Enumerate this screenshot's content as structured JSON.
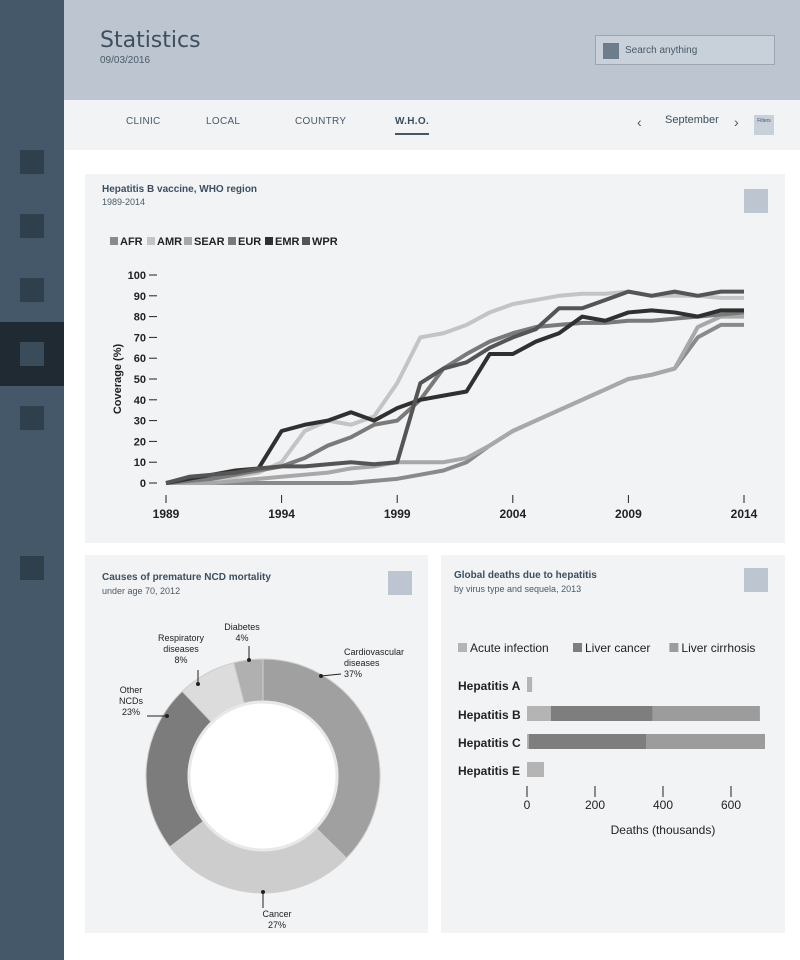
{
  "header": {
    "title": "Statistics",
    "date": "09/03/2016",
    "search_placeholder": "Search anything"
  },
  "tabs": [
    {
      "label": "CLINIC",
      "active": false
    },
    {
      "label": "LOCAL",
      "active": false
    },
    {
      "label": "COUNTRY",
      "active": false
    },
    {
      "label": "W.H.O.",
      "active": true
    }
  ],
  "month_nav": {
    "month": "September",
    "filters_label": "Filters"
  },
  "icons": {
    "search": "search-icon",
    "prev": "chevron-left-icon",
    "next": "chevron-right-icon"
  },
  "sidebar": {
    "items": 6,
    "active_index": 3
  },
  "panels": {
    "vaccine": {
      "title": "Hepatitis B vaccine, WHO region",
      "subtitle": "1989-2014"
    },
    "ncd": {
      "title": "Causes of premature NCD mortality",
      "subtitle": "under age 70, 2012"
    },
    "hep": {
      "title": "Global deaths due to hepatitis",
      "subtitle": "by virus type and sequela, 2013"
    }
  },
  "chart_data": [
    {
      "type": "line",
      "ylabel": "Coverage (%)",
      "xlabel": "",
      "xlim": [
        1989,
        2014
      ],
      "ylim": [
        0,
        100
      ],
      "xticks": [
        1989,
        1994,
        1999,
        2004,
        2009,
        2014
      ],
      "yticks": [
        0,
        10,
        20,
        30,
        40,
        50,
        60,
        70,
        80,
        90,
        100
      ],
      "legend_position": "top-left",
      "x": [
        1989,
        1990,
        1991,
        1992,
        1993,
        1994,
        1995,
        1996,
        1997,
        1998,
        1999,
        2000,
        2001,
        2002,
        2003,
        2004,
        2005,
        2006,
        2007,
        2008,
        2009,
        2010,
        2011,
        2012,
        2013,
        2014
      ],
      "series": [
        {
          "name": "AFR",
          "color": "#8a8a8a",
          "values": [
            0,
            0,
            0,
            0,
            0,
            0,
            0,
            0,
            0,
            1,
            2,
            4,
            6,
            10,
            18,
            25,
            30,
            35,
            40,
            45,
            50,
            52,
            55,
            70,
            76,
            76
          ]
        },
        {
          "name": "AMR",
          "color": "#c4c4c4",
          "values": [
            0,
            1,
            2,
            3,
            5,
            10,
            25,
            30,
            28,
            32,
            48,
            70,
            72,
            76,
            82,
            86,
            88,
            90,
            91,
            91,
            92,
            90,
            90,
            90,
            89,
            89
          ]
        },
        {
          "name": "SEAR",
          "color": "#a8a8a8",
          "values": [
            0,
            0,
            0,
            1,
            2,
            3,
            4,
            5,
            7,
            8,
            10,
            10,
            10,
            12,
            18,
            25,
            30,
            35,
            40,
            45,
            50,
            52,
            55,
            75,
            80,
            80
          ]
        },
        {
          "name": "EUR",
          "color": "#7a7a7a",
          "values": [
            0,
            1,
            2,
            4,
            6,
            8,
            12,
            18,
            22,
            28,
            30,
            40,
            55,
            62,
            68,
            72,
            75,
            76,
            77,
            77,
            78,
            78,
            79,
            80,
            81,
            82
          ]
        },
        {
          "name": "EMR",
          "color": "#303030",
          "values": [
            0,
            2,
            4,
            6,
            7,
            25,
            28,
            30,
            34,
            30,
            36,
            40,
            42,
            44,
            62,
            62,
            68,
            72,
            80,
            78,
            82,
            83,
            82,
            80,
            83,
            83
          ]
        },
        {
          "name": "WPR",
          "color": "#555555",
          "values": [
            0,
            3,
            4,
            5,
            7,
            8,
            8,
            9,
            10,
            9,
            10,
            48,
            55,
            58,
            65,
            70,
            74,
            84,
            84,
            88,
            92,
            90,
            92,
            90,
            92,
            92
          ]
        }
      ]
    },
    {
      "type": "pie",
      "donut": true,
      "slices": [
        {
          "label": "Cardiovascular diseases",
          "value": 37,
          "color": "#a0a0a0"
        },
        {
          "label": "Cancer",
          "value": 27,
          "color": "#cdcdcd"
        },
        {
          "label": "Other NCDs",
          "value": 23,
          "color": "#7c7c7c"
        },
        {
          "label": "Respiratory diseases",
          "value": 8,
          "color": "#dcdcdc"
        },
        {
          "label": "Diabetes",
          "value": 4,
          "color": "#b0b0b0"
        }
      ],
      "slice_labels": {
        "Cardiovascular diseases": [
          "Cardiovascular",
          "diseases",
          "37%"
        ],
        "Cancer": [
          "Cancer",
          "27%"
        ],
        "Other NCDs": [
          "Other",
          "NCDs",
          "23%"
        ],
        "Respiratory diseases": [
          "Respiratory",
          "diseases",
          "8%"
        ],
        "Diabetes": [
          "Diabetes",
          "4%"
        ]
      }
    },
    {
      "type": "bar",
      "orientation": "horizontal",
      "stacked": true,
      "categories": [
        "Hepatitis A",
        "Hepatitis B",
        "Hepatitis C",
        "Hepatitis E"
      ],
      "xlabel": "Deaths (thousands)",
      "xlim": [
        0,
        700
      ],
      "xticks": [
        0,
        200,
        400,
        600
      ],
      "legend_position": "top-left",
      "series": [
        {
          "name": "Acute infection",
          "color": "#b4b4b4",
          "values": [
            15,
            70,
            5,
            50
          ]
        },
        {
          "name": "Liver cancer",
          "color": "#7e7e7e",
          "values": [
            0,
            300,
            345,
            0
          ]
        },
        {
          "name": "Liver cirrhosis",
          "color": "#9c9c9c",
          "values": [
            0,
            315,
            350,
            0
          ]
        }
      ]
    }
  ]
}
